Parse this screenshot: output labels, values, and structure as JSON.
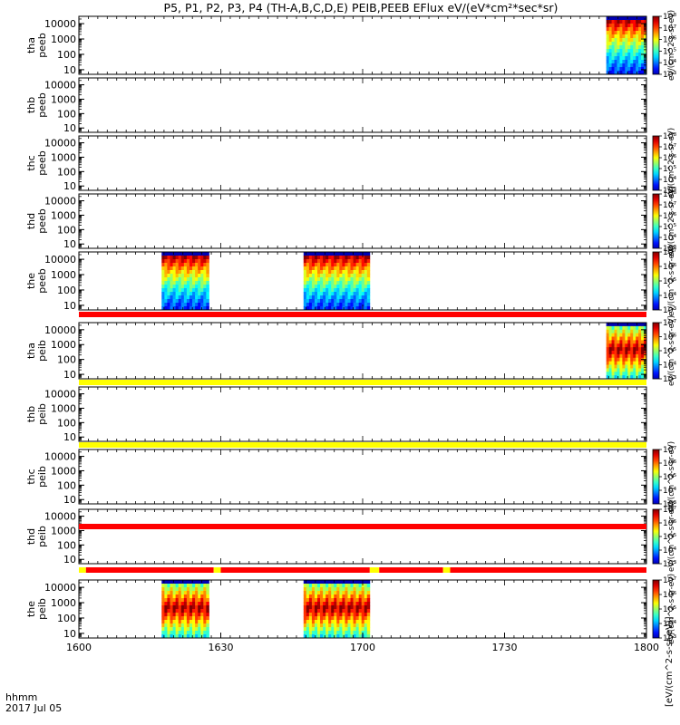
{
  "chart_data": {
    "type": "heatmap",
    "title": "P5, P1, P2, P3, P4 (TH-A,B,C,D,E) PEIB,PEEB EFlux eV/(eV*cm²*sec*sr)",
    "xlabel_line1": "hhmm",
    "xlabel_line2": "2017 Jul 05",
    "xlim": [
      960,
      1080
    ],
    "x_ticks": [
      {
        "value": 960,
        "label": "1600"
      },
      {
        "value": 990,
        "label": "1630"
      },
      {
        "value": 1020,
        "label": "1700"
      },
      {
        "value": 1050,
        "label": "1730"
      },
      {
        "value": 1080,
        "label": "1800"
      }
    ],
    "y_scale": "log",
    "ylim": [
      5,
      30000
    ],
    "y_ticks": [
      "10",
      "100",
      "1000",
      "10000"
    ],
    "colorbar_label": "eV/(cm^2-s-sr-eV)",
    "colorbar_label_full": "[eV/(cm^2-s-sr-eV)]",
    "colors": {
      "low": "#2000a0",
      "high": "#ff0000",
      "mode_red": "#ff0000",
      "mode_yellow": "#ffff00"
    },
    "panels": [
      {
        "label": "tha\npeeb",
        "colorbar": [
          "10³",
          "10⁴",
          "10⁵",
          "10⁶",
          "10⁷",
          "10⁸"
        ],
        "segments": [
          {
            "start": 1071.5,
            "end": 1080,
            "kind": "electron"
          }
        ]
      },
      {
        "label": "thb\npeeb",
        "colorbar": null,
        "segments": []
      },
      {
        "label": "thc\npeeb",
        "colorbar": [
          "10³",
          "10⁴",
          "10⁵",
          "10⁶",
          "10⁷",
          "10⁸"
        ],
        "segments": []
      },
      {
        "label": "thd\npeeb",
        "colorbar": [
          "10³",
          "10⁴",
          "10⁵",
          "10⁶",
          "10⁷",
          "10⁸"
        ],
        "segments": []
      },
      {
        "label": "the\npeeb",
        "colorbar": [
          "10³",
          "10⁴",
          "10⁵",
          "10⁶",
          "10⁷"
        ],
        "segments": [
          {
            "start": 977.5,
            "end": 987.5,
            "kind": "electron"
          },
          {
            "start": 1007.5,
            "end": 1021.5,
            "kind": "electron"
          }
        ]
      },
      {
        "label": "tha\npeib",
        "colorbar": [
          "10³",
          "10⁴",
          "10⁵",
          "10⁶",
          "10⁷"
        ],
        "segments": [
          {
            "start": 1071.5,
            "end": 1080,
            "kind": "ion"
          }
        ]
      },
      {
        "label": "thb\npeib",
        "colorbar": null,
        "segments": []
      },
      {
        "label": "thc\npeib",
        "colorbar": [
          "10³",
          "10⁴",
          "10⁵",
          "10⁶",
          "10⁷"
        ],
        "segments": []
      },
      {
        "label": "thd\npeib",
        "colorbar": [
          "10³",
          "10⁴",
          "10⁵",
          "10⁶",
          "10⁷"
        ],
        "segments": []
      },
      {
        "label": "the\npeib",
        "colorbar": [
          "10³",
          "10⁴",
          "10⁵",
          "10⁶",
          "10⁷"
        ],
        "segments": [
          {
            "start": 977.5,
            "end": 987.5,
            "kind": "ion"
          },
          {
            "start": 1007.5,
            "end": 1021.5,
            "kind": "ion"
          }
        ]
      }
    ],
    "mode_bars": [
      {
        "after_panel": 4,
        "segments": [
          {
            "start": 960,
            "end": 1080,
            "color": "red"
          }
        ]
      },
      {
        "after_panel": 5,
        "segments": [
          {
            "start": 960,
            "end": 1080,
            "color": "yellow"
          }
        ]
      },
      {
        "after_panel": 6,
        "segments": [
          {
            "start": 960,
            "end": 1080,
            "color": "yellow"
          }
        ]
      },
      {
        "after_panel": 7,
        "segments": [
          {
            "start": 960,
            "end": 1080,
            "color": "red"
          }
        ]
      },
      {
        "after_panel": 8,
        "segments": [
          {
            "start": 960,
            "end": 961.5,
            "color": "yellow"
          },
          {
            "start": 961.5,
            "end": 988.5,
            "color": "red"
          },
          {
            "start": 988.5,
            "end": 990,
            "color": "yellow"
          },
          {
            "start": 990,
            "end": 1021.5,
            "color": "red"
          },
          {
            "start": 1021.5,
            "end": 1023.5,
            "color": "yellow"
          },
          {
            "start": 1023.5,
            "end": 1037,
            "color": "red"
          },
          {
            "start": 1037,
            "end": 1038.5,
            "color": "yellow"
          },
          {
            "start": 1038.5,
            "end": 1080,
            "color": "red"
          }
        ]
      }
    ]
  }
}
